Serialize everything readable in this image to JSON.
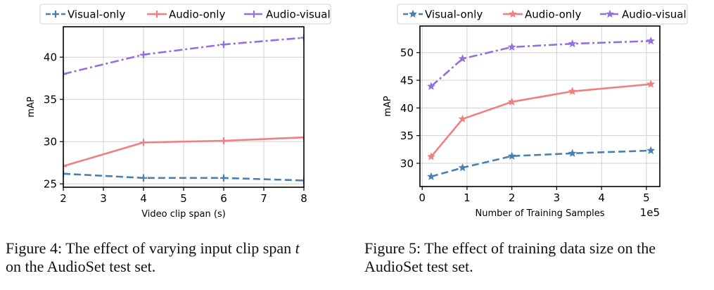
{
  "chart_data": [
    {
      "type": "line",
      "title": "",
      "xlabel": "Video clip span (s)",
      "ylabel": "mAP",
      "xlim": [
        2,
        8
      ],
      "ylim": [
        24.6,
        43.6
      ],
      "xticks": [
        "2",
        "3",
        "4",
        "5",
        "6",
        "7",
        "8"
      ],
      "yticks": [
        "25",
        "30",
        "35",
        "40"
      ],
      "xtick_values": [
        2,
        3,
        4,
        5,
        6,
        7,
        8
      ],
      "ytick_values": [
        25,
        30,
        35,
        40
      ],
      "grid": true,
      "legend_position": "top",
      "series": [
        {
          "name": "Visual-only",
          "color": "#4a80b0",
          "dash": "dashed",
          "marker": "plus",
          "x": [
            2,
            4,
            6,
            8
          ],
          "values": [
            26.2,
            25.7,
            25.7,
            25.4
          ]
        },
        {
          "name": "Audio-only",
          "color": "#f08080",
          "dash": "solid",
          "marker": "plus",
          "x": [
            2,
            4,
            6,
            8
          ],
          "values": [
            27.1,
            29.9,
            30.1,
            30.5
          ]
        },
        {
          "name": "Audio-visual",
          "color": "#9370db",
          "dash": "dashdot",
          "marker": "plus",
          "x": [
            2,
            4,
            6,
            8
          ],
          "values": [
            38.0,
            40.3,
            41.5,
            42.3
          ]
        }
      ]
    },
    {
      "type": "line",
      "title": "",
      "xlabel": "Number of Training Samples",
      "ylabel": "mAP",
      "offset_label": "1e5",
      "xlim": [
        -0.05,
        5.3
      ],
      "ylim": [
        25.8,
        54.8
      ],
      "xticks": [
        "0",
        "1",
        "2",
        "3",
        "4",
        "5"
      ],
      "yticks": [
        "30",
        "35",
        "40",
        "45",
        "50"
      ],
      "xtick_values": [
        0,
        1,
        2,
        3,
        4,
        5
      ],
      "ytick_values": [
        30,
        35,
        40,
        45,
        50
      ],
      "grid": true,
      "legend_position": "top",
      "series": [
        {
          "name": "Visual-only",
          "color": "#4a80b0",
          "dash": "dashed",
          "marker": "star",
          "x": [
            0.2,
            0.9,
            2.0,
            3.35,
            5.1
          ],
          "values": [
            27.6,
            29.2,
            31.3,
            31.8,
            32.3
          ]
        },
        {
          "name": "Audio-only",
          "color": "#f08080",
          "dash": "solid",
          "marker": "star",
          "x": [
            0.2,
            0.9,
            2.0,
            3.35,
            5.1
          ],
          "values": [
            31.2,
            38.0,
            41.1,
            43.0,
            44.3
          ]
        },
        {
          "name": "Audio-visual",
          "color": "#9370db",
          "dash": "dashdot",
          "marker": "star",
          "x": [
            0.2,
            0.9,
            2.0,
            3.35,
            5.1
          ],
          "values": [
            43.9,
            48.9,
            51.0,
            51.6,
            52.1
          ]
        }
      ]
    }
  ],
  "captions": {
    "fig4_prefix": "Figure 4: The effect of varying input clip span",
    "fig4_var": "t",
    "fig4_suffix": "on the AudioSet test set.",
    "fig5": "Figure 5: The effect of training data size on the AudioSet test set."
  }
}
